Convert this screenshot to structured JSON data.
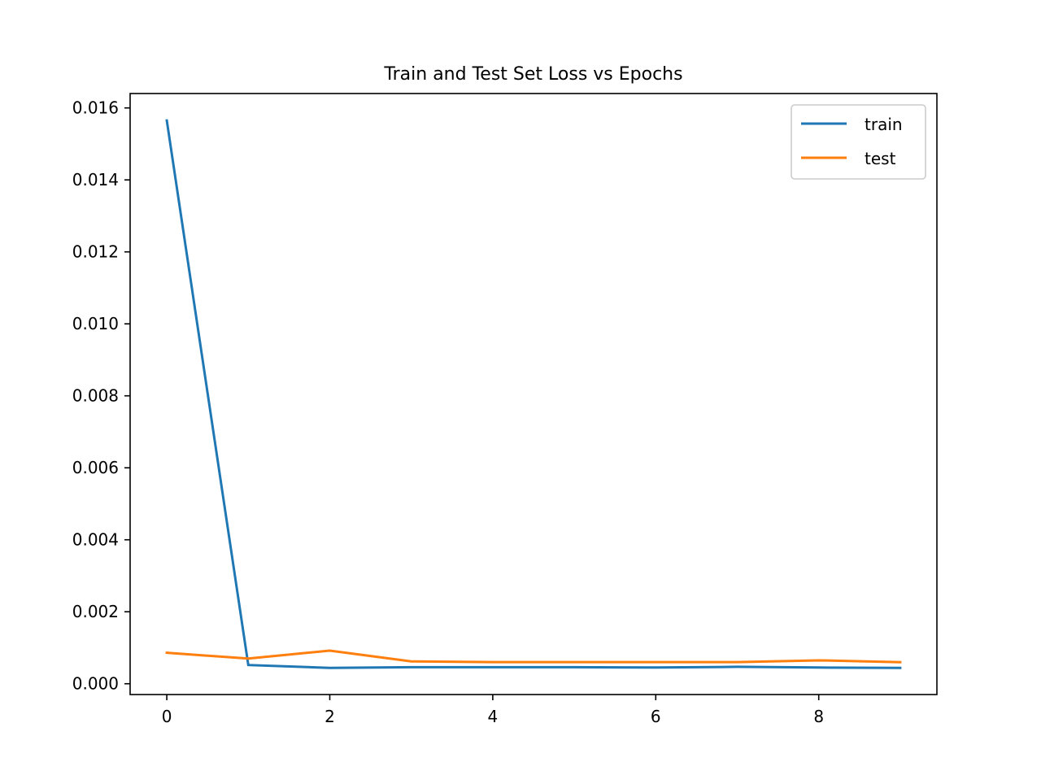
{
  "chart_data": {
    "type": "line",
    "title": "Train and Test Set Loss vs Epochs",
    "xlabel": "",
    "ylabel": "",
    "xlim": [
      -0.45,
      9.45
    ],
    "ylim": [
      -0.0003,
      0.0164
    ],
    "x_ticks": [
      0,
      2,
      4,
      6,
      8
    ],
    "x_tick_labels": [
      "0",
      "2",
      "4",
      "6",
      "8"
    ],
    "y_ticks": [
      0.0,
      0.002,
      0.004,
      0.006,
      0.008,
      0.01,
      0.012,
      0.014,
      0.016
    ],
    "y_tick_labels": [
      "0.000",
      "0.002",
      "0.004",
      "0.006",
      "0.008",
      "0.010",
      "0.012",
      "0.014",
      "0.016"
    ],
    "grid": false,
    "legend_position": "top-right",
    "x": [
      0,
      1,
      2,
      3,
      4,
      5,
      6,
      7,
      8,
      9
    ],
    "series": [
      {
        "name": "train",
        "color": "#1f77b4",
        "values": [
          0.01565,
          0.00052,
          0.00044,
          0.00046,
          0.00046,
          0.00046,
          0.00045,
          0.00047,
          0.00045,
          0.00044
        ]
      },
      {
        "name": "test",
        "color": "#ff7f0e",
        "values": [
          0.00086,
          0.0007,
          0.00092,
          0.00062,
          0.0006,
          0.0006,
          0.0006,
          0.0006,
          0.00065,
          0.0006
        ]
      }
    ]
  }
}
